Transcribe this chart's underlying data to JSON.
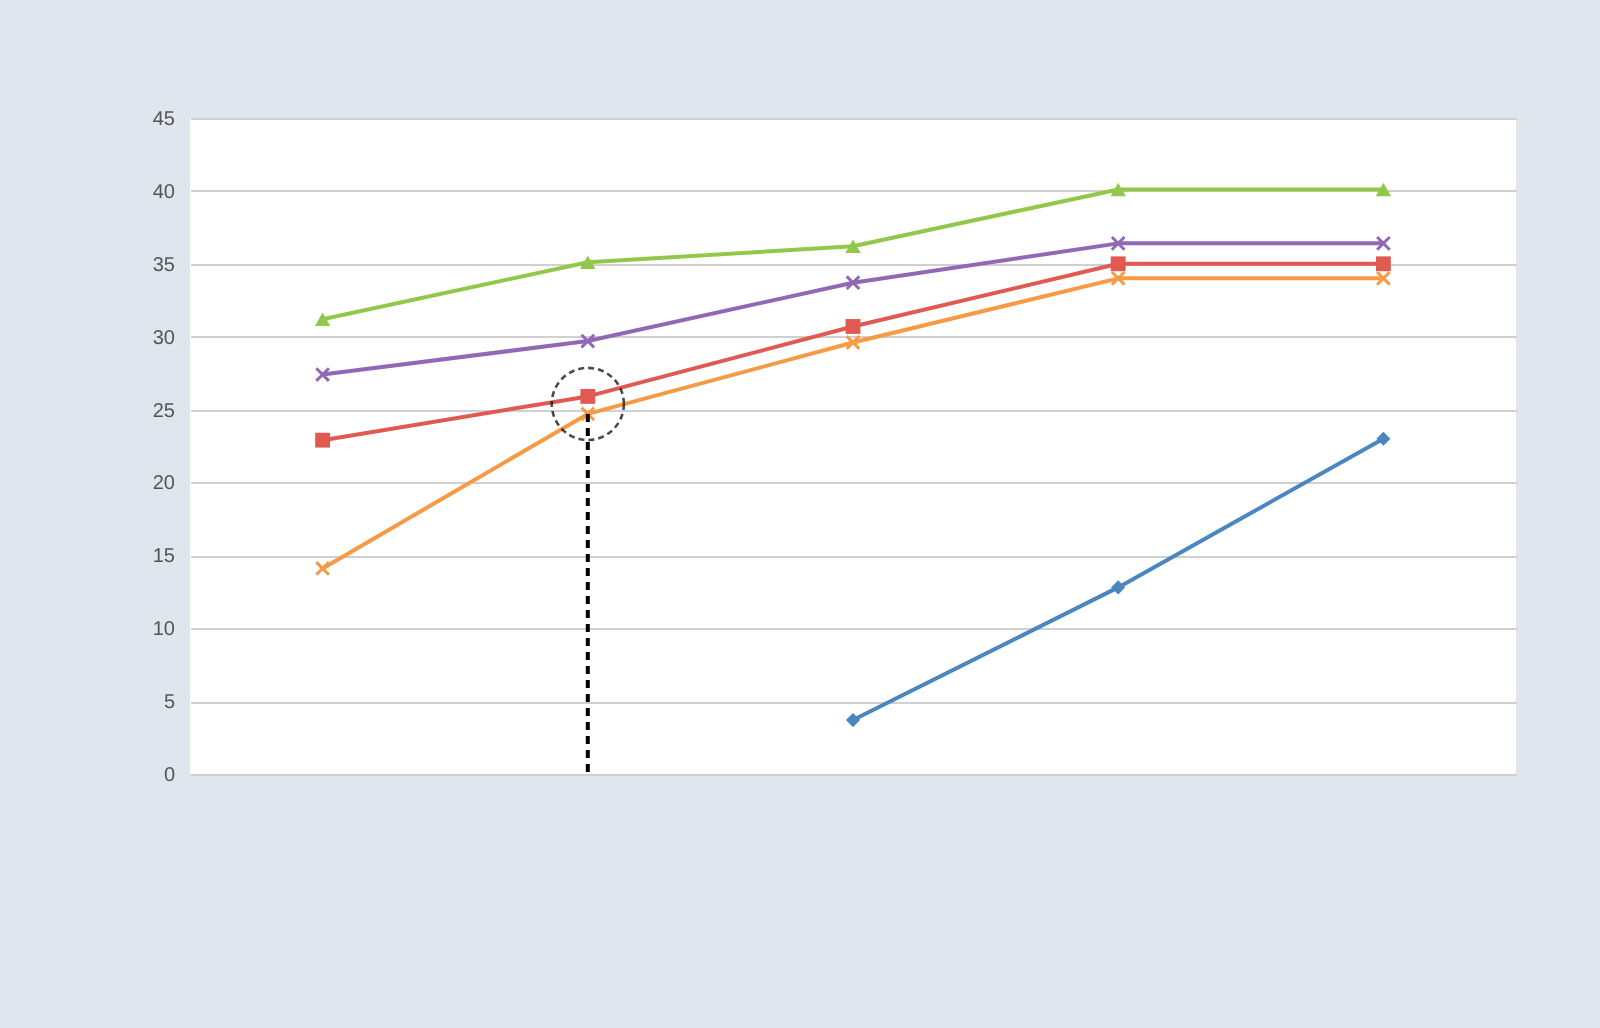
{
  "chart_data": {
    "type": "line",
    "categories": [
      null,
      null,
      null,
      null,
      null
    ],
    "series": [
      {
        "color": "#4a86c0",
        "marker": "diamond",
        "values": [
          null,
          null,
          3.7,
          12.8,
          23.0
        ]
      },
      {
        "color": "#e05a52",
        "marker": "square",
        "values": [
          22.9,
          25.9,
          30.7,
          35.0,
          35.0
        ]
      },
      {
        "color": "#92c84a",
        "marker": "triangle",
        "values": [
          31.2,
          35.1,
          36.2,
          40.1,
          40.1
        ]
      },
      {
        "color": "#9068b5",
        "marker": "cross",
        "values": [
          27.4,
          29.7,
          33.7,
          36.4,
          36.4
        ]
      },
      {
        "color": "#f79a45",
        "marker": "cross",
        "values": [
          14.1,
          24.7,
          29.6,
          34.0,
          34.0
        ]
      }
    ],
    "ylim": [
      0,
      45
    ],
    "yticks": [
      0,
      5,
      10,
      15,
      20,
      25,
      30,
      35,
      40,
      45
    ],
    "grid": "y",
    "tick_labels": "y"
  }
}
